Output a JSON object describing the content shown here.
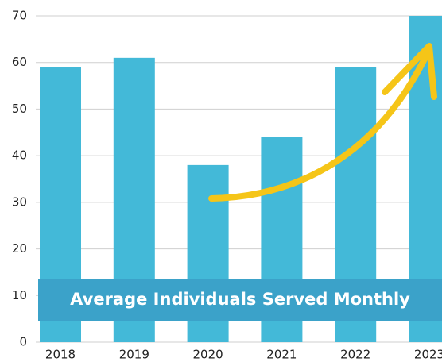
{
  "chart_data": {
    "type": "bar",
    "title": "Average Individuals Served Monthly",
    "categories": [
      "2018",
      "2019",
      "2020",
      "2021",
      "2022",
      "2023"
    ],
    "values": [
      59,
      61,
      38,
      44,
      59,
      70
    ],
    "color": "#43b9d8",
    "ylim": [
      0,
      70
    ],
    "yticks": [
      0,
      10,
      20,
      30,
      40,
      50,
      60,
      70
    ],
    "grid": true
  }
}
